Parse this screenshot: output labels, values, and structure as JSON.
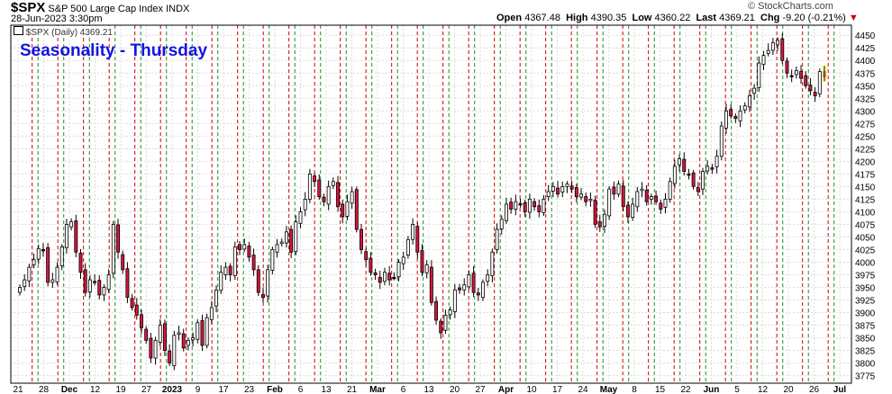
{
  "header": {
    "symbol": "$SPX",
    "name": "S&P 500 Large Cap Index",
    "exchange": "INDX",
    "datetime": "28-Jun-2023 3:30pm",
    "watermark": "© StockCharts.com",
    "open_label": "Open",
    "open": "4367.48",
    "high_label": "High",
    "high": "4390.35",
    "low_label": "Low",
    "low": "4360.22",
    "last_label": "Last",
    "last": "4369.21",
    "chg_label": "Chg",
    "chg": "-9.20 (-0.21%)"
  },
  "overlay_title": "Seasonality - Thursday",
  "legend": {
    "label": "$SPX (Daily) 4369.21"
  },
  "colors": {
    "up_body": "#ffffff",
    "down_body": "#dc143c",
    "doji": "#000000",
    "green_line": "#228b22",
    "red_line": "#cc0000",
    "grid": "#dcdcdc",
    "title": "#1414e6",
    "last_highlight": "#ffff66"
  },
  "chart_data": {
    "type": "candlestick",
    "ylim": [
      3760,
      4470
    ],
    "y_ticks": [
      3775,
      3800,
      3825,
      3850,
      3875,
      3900,
      3925,
      3950,
      3975,
      4000,
      4025,
      4050,
      4075,
      4100,
      4125,
      4150,
      4175,
      4200,
      4225,
      4250,
      4275,
      4300,
      4325,
      4350,
      4375,
      4400,
      4425,
      4450
    ],
    "x_tick_labels": [
      "21",
      "28",
      "Dec",
      "12",
      "19",
      "27",
      "2023",
      "9",
      "17",
      "23",
      "Feb",
      "6",
      "13",
      "21",
      "Mar",
      "6",
      "13",
      "20",
      "27",
      "Apr",
      "10",
      "17",
      "24",
      "May",
      "8",
      "15",
      "22",
      "Jun",
      "5",
      "12",
      "20",
      "26",
      "Jul"
    ],
    "bold_x_labels": [
      "Dec",
      "2023",
      "Feb",
      "Mar",
      "Apr",
      "May",
      "Jun",
      "Jul"
    ],
    "vertical_lines": {
      "green_after_tick_index": [
        0,
        1,
        2,
        3,
        4,
        5,
        6,
        7,
        8,
        9,
        10,
        11,
        12,
        13,
        14,
        15,
        16,
        17,
        18,
        19,
        20,
        21,
        22,
        23,
        24,
        25,
        26,
        27,
        28,
        29,
        30,
        31
      ],
      "red_after_tick_index": [
        0,
        1,
        2,
        3,
        4,
        5,
        6,
        7,
        8,
        9,
        10,
        11,
        12,
        13,
        14,
        15,
        16,
        17,
        18,
        19,
        20,
        21,
        22,
        23,
        24,
        25,
        26,
        27,
        28,
        29,
        30,
        31
      ]
    },
    "closes": [
      3950,
      3965,
      3990,
      4005,
      4027,
      4025,
      3960,
      3965,
      3990,
      4030,
      4075,
      4080,
      4020,
      3980,
      3940,
      3965,
      3960,
      3935,
      3950,
      3975,
      4075,
      4020,
      3985,
      3930,
      3910,
      3895,
      3870,
      3845,
      3810,
      3845,
      3875,
      3825,
      3800,
      3855,
      3860,
      3830,
      3845,
      3850,
      3880,
      3835,
      3890,
      3910,
      3945,
      3980,
      3990,
      3975,
      4030,
      4025,
      4035,
      4010,
      3985,
      3940,
      3930,
      3985,
      4025,
      4035,
      4040,
      4060,
      4020,
      4080,
      4100,
      4125,
      4175,
      4160,
      4130,
      4120,
      4150,
      4160,
      4110,
      4090,
      4120,
      4140,
      4065,
      4025,
      4005,
      3980,
      3975,
      3960,
      3980,
      3965,
      3970,
      4000,
      4010,
      4045,
      4075,
      4020,
      3980,
      3995,
      3920,
      3885,
      3860,
      3895,
      3905,
      3945,
      3945,
      3955,
      3975,
      3940,
      3935,
      3960,
      3975,
      4020,
      4065,
      4085,
      4115,
      4105,
      4120,
      4115,
      4100,
      4125,
      4110,
      4100,
      4125,
      4140,
      4150,
      4135,
      4150,
      4155,
      4145,
      4130,
      4135,
      4120,
      4125,
      4075,
      4070,
      4095,
      4145,
      4135,
      4155,
      4110,
      4090,
      4115,
      4140,
      4145,
      4120,
      4130,
      4120,
      4105,
      4125,
      4160,
      4190,
      4205,
      4180,
      4175,
      4150,
      4140,
      4180,
      4190,
      4185,
      4210,
      4270,
      4300,
      4290,
      4285,
      4300,
      4310,
      4330,
      4345,
      4395,
      4410,
      4420,
      4435,
      4440,
      4400,
      4375,
      4370,
      4380,
      4365,
      4350,
      4340,
      4330,
      4378,
      4369
    ]
  }
}
